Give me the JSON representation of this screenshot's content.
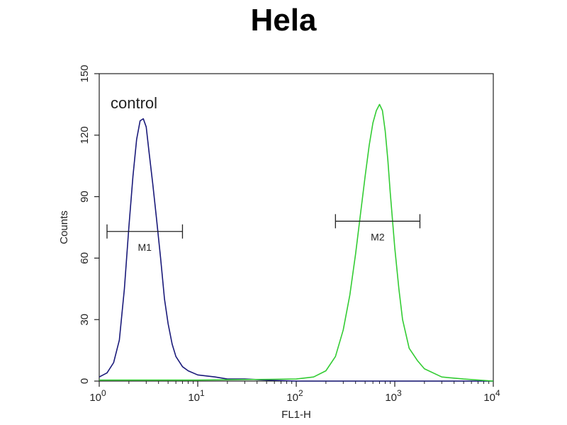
{
  "chart_data": {
    "type": "line",
    "title": "Hela",
    "xlabel": "FL1-H",
    "ylabel": "Counts",
    "x_scale": "log",
    "xlim": [
      1,
      10000
    ],
    "ylim": [
      0,
      150
    ],
    "x_ticks": [
      {
        "value": 1,
        "base": "10",
        "exp": "0"
      },
      {
        "value": 10,
        "base": "10",
        "exp": "1"
      },
      {
        "value": 100,
        "base": "10",
        "exp": "2"
      },
      {
        "value": 1000,
        "base": "10",
        "exp": "3"
      },
      {
        "value": 10000,
        "base": "10",
        "exp": "4"
      }
    ],
    "y_ticks": [
      0,
      30,
      60,
      90,
      120,
      150
    ],
    "annotation": "control",
    "series": [
      {
        "name": "control",
        "color": "#1a1a7a",
        "x": [
          1,
          1.2,
          1.4,
          1.6,
          1.8,
          2.0,
          2.2,
          2.4,
          2.6,
          2.8,
          3.0,
          3.2,
          3.5,
          3.8,
          4.2,
          4.6,
          5.0,
          5.5,
          6.0,
          7.0,
          8.0,
          10,
          15,
          20,
          30,
          50,
          100,
          1000,
          10000
        ],
        "y": [
          2,
          4,
          9,
          20,
          45,
          75,
          100,
          118,
          127,
          128,
          124,
          112,
          96,
          80,
          60,
          40,
          28,
          18,
          12,
          7,
          5,
          3,
          2,
          1,
          1,
          0.5,
          0,
          0,
          0
        ]
      },
      {
        "name": "",
        "color": "#33cc33",
        "x": [
          1,
          10,
          100,
          150,
          200,
          250,
          300,
          350,
          400,
          450,
          500,
          550,
          600,
          650,
          700,
          750,
          800,
          850,
          900,
          1000,
          1100,
          1200,
          1400,
          1700,
          2000,
          3000,
          5000,
          10000
        ],
        "y": [
          0.5,
          0.5,
          1,
          2,
          5,
          12,
          25,
          42,
          62,
          82,
          100,
          115,
          126,
          132,
          135,
          132,
          122,
          108,
          92,
          65,
          45,
          30,
          16,
          10,
          6,
          2,
          1,
          0
        ]
      }
    ],
    "markers": [
      {
        "label": "M1",
        "x_start": 1.2,
        "x_end": 7,
        "y": 73
      },
      {
        "label": "M2",
        "x_start": 250,
        "x_end": 1800,
        "y": 78
      }
    ]
  }
}
